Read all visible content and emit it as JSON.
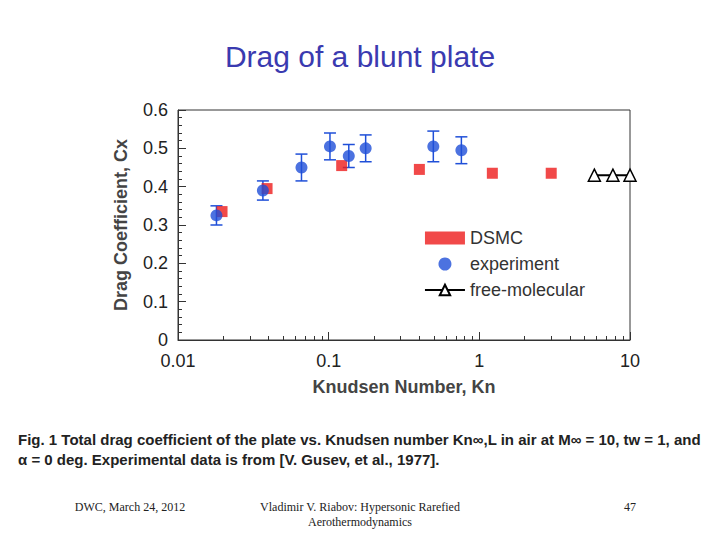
{
  "chart_data": {
    "type": "scatter",
    "title": "Drag of a blunt plate",
    "x_label": "Knudsen Number, Kn",
    "y_label": "Drag Coefficient, Cx",
    "log": "x",
    "grid": false,
    "legend": "right",
    "xlim": [
      0.01,
      10
    ],
    "xticks": [
      0.01,
      0.1,
      1,
      10
    ],
    "ylim": [
      0,
      0.6
    ],
    "yticks": [
      0,
      0.1,
      0.2,
      0.3,
      0.4,
      0.5,
      0.6
    ],
    "series": [
      {
        "name": "DSMC",
        "type": "scatter",
        "color": "#ee1c1c",
        "marker": "square",
        "x": [
          0.0196,
          0.039,
          0.122,
          0.4,
          1.22,
          3.0
        ],
        "values": [
          0.335,
          0.395,
          0.455,
          0.445,
          0.435,
          0.435
        ]
      },
      {
        "name": "experiment",
        "type": "scatter",
        "color": "#1f4fd8",
        "marker": "circle",
        "x": [
          0.018,
          0.0366,
          0.066,
          0.102,
          0.136,
          0.176,
          0.495,
          0.76
        ],
        "values": [
          0.325,
          0.39,
          0.45,
          0.505,
          0.48,
          0.5,
          0.505,
          0.495
        ],
        "errors": [
          0.025,
          0.025,
          0.035,
          0.035,
          0.03,
          0.035,
          0.04,
          0.035
        ]
      },
      {
        "name": "free-molecular",
        "type": "line",
        "color": "#000000",
        "marker": "triangle",
        "line_style": "solid",
        "x": [
          5.8,
          7.7,
          10.0
        ],
        "values": [
          0.43,
          0.43,
          0.43
        ]
      }
    ]
  },
  "caption": "Fig. 1 Total drag coefficient of the plate vs. Knudsen number Kn∞,L in air at M∞ = 10, tw = 1, and α = 0 deg. Experimental data is from [V. Gusev, et al., 1977].",
  "footer": {
    "left": "DWC, March 24, 2012",
    "center": "Vladimir V. Riabov: Hypersonic Rarefied Aerothermodynamics",
    "right": "47"
  }
}
